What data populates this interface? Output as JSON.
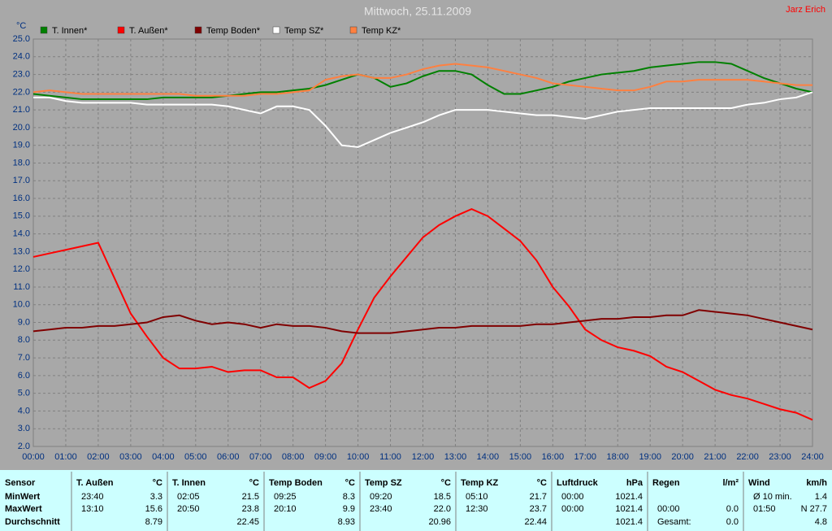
{
  "chart_data": {
    "type": "line",
    "title": "Mittwoch, 25.11.2009",
    "author": "Jarz Erich",
    "y_label": "°C",
    "legend": "top",
    "grid": true,
    "x": [
      0,
      0.5,
      1,
      1.5,
      2,
      2.5,
      3,
      3.5,
      4,
      4.5,
      5,
      5.5,
      6,
      6.5,
      7,
      7.5,
      8,
      8.5,
      9,
      9.5,
      10,
      10.5,
      11,
      11.5,
      12,
      12.5,
      13,
      13.5,
      14,
      14.5,
      15,
      15.5,
      16,
      16.5,
      17,
      17.5,
      18,
      18.5,
      19,
      19.5,
      20,
      20.5,
      21,
      21.5,
      22,
      22.5,
      23,
      23.5,
      24
    ],
    "xlim": [
      0,
      24
    ],
    "xticks": [
      {
        "value": 0,
        "label": "00:00"
      },
      {
        "value": 1,
        "label": "01:00"
      },
      {
        "value": 2,
        "label": "02:00"
      },
      {
        "value": 3,
        "label": "03:00"
      },
      {
        "value": 4,
        "label": "04:00"
      },
      {
        "value": 5,
        "label": "05:00"
      },
      {
        "value": 6,
        "label": "06:00"
      },
      {
        "value": 7,
        "label": "07:00"
      },
      {
        "value": 8,
        "label": "08:00"
      },
      {
        "value": 9,
        "label": "09:00"
      },
      {
        "value": 10,
        "label": "10:00"
      },
      {
        "value": 11,
        "label": "11:00"
      },
      {
        "value": 12,
        "label": "12:00"
      },
      {
        "value": 13,
        "label": "13:00"
      },
      {
        "value": 14,
        "label": "14:00"
      },
      {
        "value": 15,
        "label": "15:00"
      },
      {
        "value": 16,
        "label": "16:00"
      },
      {
        "value": 17,
        "label": "17:00"
      },
      {
        "value": 18,
        "label": "18:00"
      },
      {
        "value": 19,
        "label": "19:00"
      },
      {
        "value": 20,
        "label": "20:00"
      },
      {
        "value": 21,
        "label": "21:00"
      },
      {
        "value": 22,
        "label": "22:00"
      },
      {
        "value": 23,
        "label": "23:00"
      },
      {
        "value": 24,
        "label": "24:00"
      }
    ],
    "ylim": [
      2,
      25
    ],
    "yticks": [
      {
        "value": 2,
        "label": "2.0"
      },
      {
        "value": 3,
        "label": "3.0"
      },
      {
        "value": 4,
        "label": "4.0"
      },
      {
        "value": 5,
        "label": "5.0"
      },
      {
        "value": 6,
        "label": "6.0"
      },
      {
        "value": 7,
        "label": "7.0"
      },
      {
        "value": 8,
        "label": "8.0"
      },
      {
        "value": 9,
        "label": "9.0"
      },
      {
        "value": 10,
        "label": "10.0"
      },
      {
        "value": 11,
        "label": "11.0"
      },
      {
        "value": 12,
        "label": "12.0"
      },
      {
        "value": 13,
        "label": "13.0"
      },
      {
        "value": 14,
        "label": "14.0"
      },
      {
        "value": 15,
        "label": "15.0"
      },
      {
        "value": 16,
        "label": "16.0"
      },
      {
        "value": 17,
        "label": "17.0"
      },
      {
        "value": 18,
        "label": "18.0"
      },
      {
        "value": 19,
        "label": "19.0"
      },
      {
        "value": 20,
        "label": "20.0"
      },
      {
        "value": 21,
        "label": "21.0"
      },
      {
        "value": 22,
        "label": "22.0"
      },
      {
        "value": 23,
        "label": "23.0"
      },
      {
        "value": 24,
        "label": "24.0"
      },
      {
        "value": 25,
        "label": "25.0"
      }
    ],
    "series": [
      {
        "name": "T. Innen*",
        "color": "#008000",
        "values": [
          21.9,
          21.8,
          21.7,
          21.6,
          21.6,
          21.6,
          21.6,
          21.6,
          21.7,
          21.7,
          21.7,
          21.7,
          21.8,
          21.9,
          22.0,
          22.0,
          22.1,
          22.2,
          22.4,
          22.7,
          23.0,
          22.8,
          22.3,
          22.5,
          22.9,
          23.2,
          23.2,
          23.0,
          22.4,
          21.9,
          21.9,
          22.1,
          22.3,
          22.6,
          22.8,
          23.0,
          23.1,
          23.2,
          23.4,
          23.5,
          23.6,
          23.7,
          23.7,
          23.6,
          23.2,
          22.8,
          22.5,
          22.2,
          22.0
        ]
      },
      {
        "name": "T. Außen*",
        "color": "#ff0000",
        "values": [
          12.7,
          12.9,
          13.1,
          13.3,
          13.5,
          11.5,
          9.5,
          8.2,
          7.0,
          6.4,
          6.4,
          6.5,
          6.2,
          6.3,
          6.3,
          5.9,
          5.9,
          5.3,
          5.7,
          6.7,
          8.6,
          10.4,
          11.6,
          12.7,
          13.8,
          14.5,
          15.0,
          15.4,
          15.0,
          14.3,
          13.6,
          12.5,
          11.0,
          9.9,
          8.6,
          8.0,
          7.6,
          7.4,
          7.1,
          6.5,
          6.2,
          5.7,
          5.2,
          4.9,
          4.7,
          4.4,
          4.1,
          3.9,
          3.5
        ]
      },
      {
        "name": "Temp Boden*",
        "color": "#800000",
        "values": [
          8.5,
          8.6,
          8.7,
          8.7,
          8.8,
          8.8,
          8.9,
          9.0,
          9.3,
          9.4,
          9.1,
          8.9,
          9.0,
          8.9,
          8.7,
          8.9,
          8.8,
          8.8,
          8.7,
          8.5,
          8.4,
          8.4,
          8.4,
          8.5,
          8.6,
          8.7,
          8.7,
          8.8,
          8.8,
          8.8,
          8.8,
          8.9,
          8.9,
          9.0,
          9.1,
          9.2,
          9.2,
          9.3,
          9.3,
          9.4,
          9.4,
          9.7,
          9.6,
          9.5,
          9.4,
          9.2,
          9.0,
          8.8,
          8.6
        ]
      },
      {
        "name": "Temp SZ*",
        "color": "#ffffff",
        "values": [
          21.7,
          21.7,
          21.5,
          21.4,
          21.4,
          21.4,
          21.4,
          21.3,
          21.3,
          21.3,
          21.3,
          21.3,
          21.2,
          21.0,
          20.8,
          21.2,
          21.2,
          21.0,
          20.1,
          19.0,
          18.9,
          19.3,
          19.7,
          20.0,
          20.3,
          20.7,
          21.0,
          21.0,
          21.0,
          20.9,
          20.8,
          20.7,
          20.7,
          20.6,
          20.5,
          20.7,
          20.9,
          21.0,
          21.1,
          21.1,
          21.1,
          21.1,
          21.1,
          21.1,
          21.3,
          21.4,
          21.6,
          21.7,
          22.0
        ]
      },
      {
        "name": "Temp KZ*",
        "color": "#ff8040",
        "values": [
          22.0,
          22.1,
          22.0,
          21.9,
          21.9,
          21.9,
          21.9,
          21.9,
          21.9,
          21.9,
          21.8,
          21.8,
          21.8,
          21.8,
          21.9,
          21.9,
          22.0,
          22.1,
          22.7,
          22.9,
          23.0,
          22.8,
          22.8,
          23.0,
          23.3,
          23.5,
          23.6,
          23.5,
          23.4,
          23.2,
          23.0,
          22.8,
          22.5,
          22.4,
          22.3,
          22.2,
          22.1,
          22.1,
          22.3,
          22.6,
          22.6,
          22.7,
          22.7,
          22.7,
          22.7,
          22.6,
          22.5,
          22.4,
          22.4
        ]
      }
    ]
  },
  "table": {
    "header_label": "Sensor",
    "columns": [
      {
        "name": "T. Außen",
        "unit": "°C"
      },
      {
        "name": "T. Innen",
        "unit": "°C"
      },
      {
        "name": "Temp Boden",
        "unit": "°C"
      },
      {
        "name": "Temp SZ",
        "unit": "°C"
      },
      {
        "name": "Temp KZ",
        "unit": "°C"
      },
      {
        "name": "Luftdruck",
        "unit": "hPa"
      },
      {
        "name": "Regen",
        "unit": "l/m²"
      },
      {
        "name": "Wind",
        "unit": "km/h"
      }
    ],
    "rows": [
      {
        "label": "MinWert",
        "cells": [
          [
            "23:40",
            "3.3"
          ],
          [
            "02:05",
            "21.5"
          ],
          [
            "09:25",
            "8.3"
          ],
          [
            "09:20",
            "18.5"
          ],
          [
            "05:10",
            "21.7"
          ],
          [
            "00:00",
            "1021.4"
          ],
          [
            null,
            null
          ],
          [
            "Ø 10 min.",
            "1.4"
          ]
        ]
      },
      {
        "label": "MaxWert",
        "cells": [
          [
            "13:10",
            "15.6"
          ],
          [
            "20:50",
            "23.8"
          ],
          [
            "20:10",
            "9.9"
          ],
          [
            "23:40",
            "22.0"
          ],
          [
            "12:30",
            "23.7"
          ],
          [
            "00:00",
            "1021.4"
          ],
          [
            "00:00",
            "0.0"
          ],
          [
            "01:50",
            "N 27.7"
          ]
        ]
      },
      {
        "label": "Durchschnitt",
        "cells": [
          [
            null,
            "8.79"
          ],
          [
            null,
            "22.45"
          ],
          [
            null,
            "8.93"
          ],
          [
            null,
            "20.96"
          ],
          [
            null,
            "22.44"
          ],
          [
            null,
            "1021.4"
          ],
          [
            "Gesamt:",
            "0.0"
          ],
          [
            null,
            "4.8"
          ]
        ]
      }
    ]
  }
}
